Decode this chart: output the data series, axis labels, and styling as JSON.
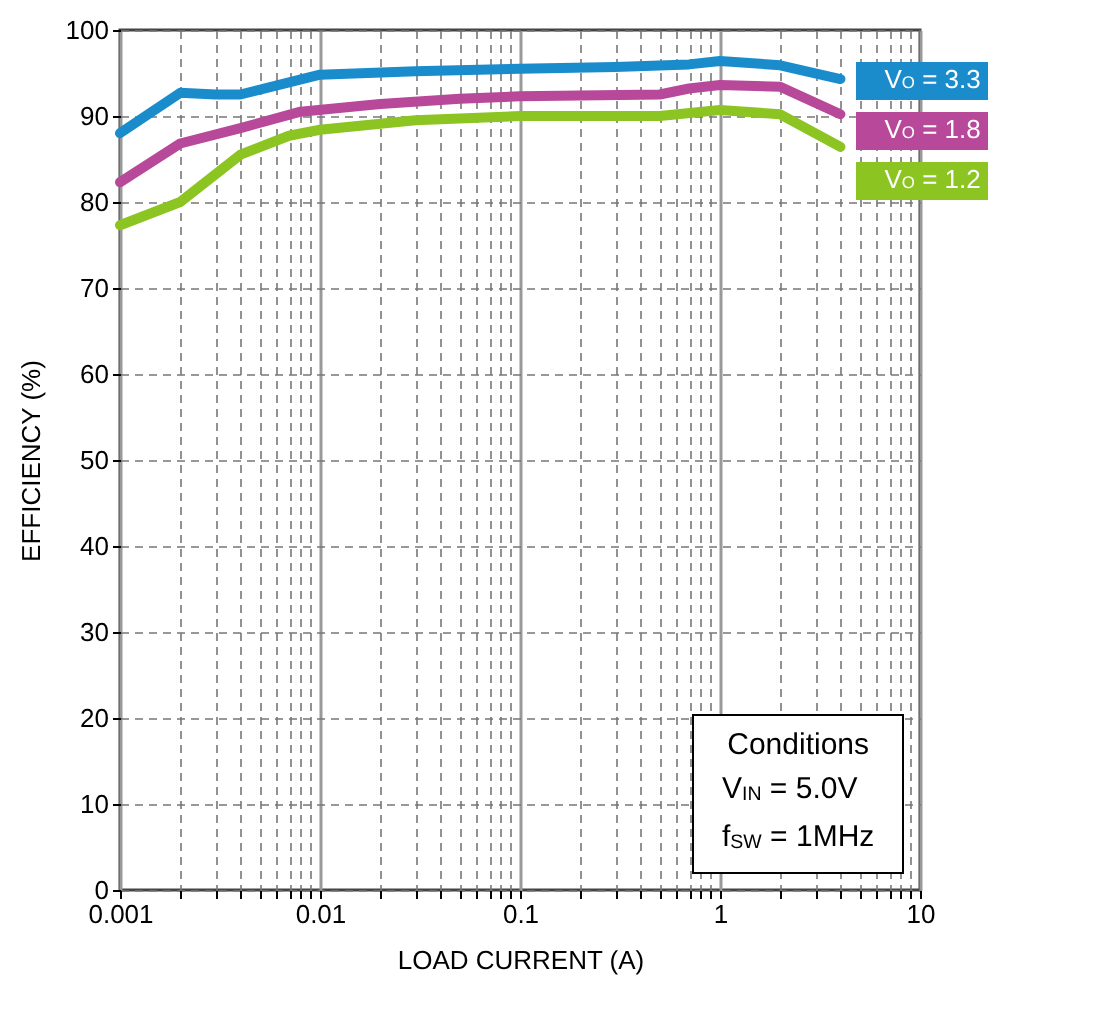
{
  "chart_data": {
    "type": "line",
    "xlabel": "LOAD CURRENT (A)",
    "ylabel": "EFFICIENCY (%)",
    "log": "x",
    "grid": true,
    "legend": "right",
    "line_style": "solid",
    "marker": "none",
    "xlim": [
      0.001,
      10
    ],
    "ylim": [
      0,
      100
    ],
    "xticks": [
      0.001,
      {
        "value": 0.002,
        "label": null
      },
      {
        "value": 0.003,
        "label": null
      },
      {
        "value": 0.004,
        "label": null
      },
      {
        "value": 0.005,
        "label": null
      },
      {
        "value": 0.006,
        "label": null
      },
      {
        "value": 0.007,
        "label": null
      },
      {
        "value": 0.008,
        "label": null
      },
      {
        "value": 0.009,
        "label": null
      },
      0.01,
      {
        "value": 0.02,
        "label": null
      },
      {
        "value": 0.03,
        "label": null
      },
      {
        "value": 0.04,
        "label": null
      },
      {
        "value": 0.05,
        "label": null
      },
      {
        "value": 0.06,
        "label": null
      },
      {
        "value": 0.07,
        "label": null
      },
      {
        "value": 0.08,
        "label": null
      },
      {
        "value": 0.09,
        "label": null
      },
      0.1,
      {
        "value": 0.2,
        "label": null
      },
      {
        "value": 0.3,
        "label": null
      },
      {
        "value": 0.4,
        "label": null
      },
      {
        "value": 0.5,
        "label": null
      },
      {
        "value": 0.6,
        "label": null
      },
      {
        "value": 0.7,
        "label": null
      },
      {
        "value": 0.8,
        "label": null
      },
      {
        "value": 0.9,
        "label": null
      },
      1,
      {
        "value": 2,
        "label": null
      },
      {
        "value": 3,
        "label": null
      },
      {
        "value": 4,
        "label": null
      },
      {
        "value": 5,
        "label": null
      },
      {
        "value": 6,
        "label": null
      },
      {
        "value": 7,
        "label": null
      },
      {
        "value": 8,
        "label": null
      },
      {
        "value": 9,
        "label": null
      },
      10
    ],
    "yticks": [
      0,
      10,
      20,
      30,
      40,
      50,
      60,
      70,
      80,
      90,
      100
    ],
    "series": [
      {
        "name": "V$_{O}$ = 3.3",
        "color": "#1a8ccc",
        "x": [
          0.001,
          0.002,
          0.003,
          0.004,
          0.007,
          0.01,
          0.03,
          0.1,
          0.3,
          0.7,
          1,
          2,
          4
        ],
        "values": [
          88,
          92.7,
          92.5,
          92.5,
          93.9,
          94.8,
          95.2,
          95.5,
          95.7,
          96,
          96.4,
          95.9,
          94.3
        ]
      },
      {
        "name": "V$_{O}$ = 1.8",
        "color": "#b8489a",
        "x": [
          0.001,
          0.002,
          0.004,
          0.008,
          0.02,
          0.05,
          0.1,
          0.5,
          0.7,
          1,
          2,
          4
        ],
        "values": [
          82.3,
          86.8,
          88.6,
          90.5,
          91.4,
          92,
          92.3,
          92.5,
          93.2,
          93.6,
          93.4,
          90.2
        ]
      },
      {
        "name": "V$_{O}$ = 1.2",
        "color": "#8cc421",
        "x": [
          0.001,
          0.002,
          0.004,
          0.007,
          0.01,
          0.03,
          0.1,
          0.5,
          1,
          2,
          4
        ],
        "values": [
          77.3,
          80,
          85.5,
          87.7,
          88.4,
          89.5,
          90,
          90,
          90.7,
          90.2,
          86.4
        ]
      }
    ],
    "annotations": [
      "Conditions",
      "V$_{IN}$ = 5.0V",
      "f$_{SW}$ = 1MHz"
    ]
  }
}
